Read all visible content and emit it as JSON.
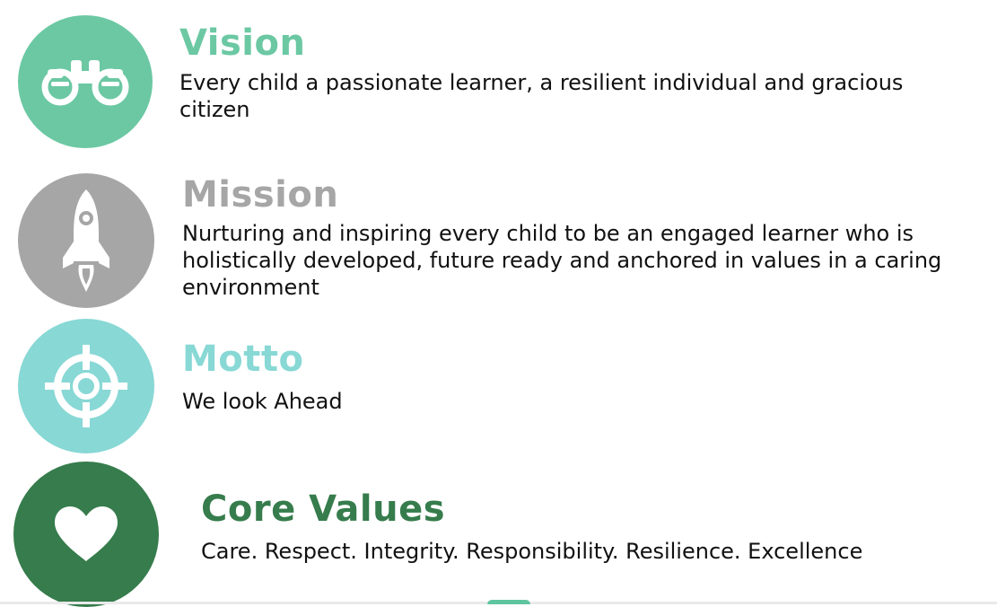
{
  "colors": {
    "vision": "#6bc8a3",
    "mission": "#a6a6a6",
    "motto": "#88d8d5",
    "core_values": "#367c4c"
  },
  "sections": {
    "vision": {
      "icon": "binoculars-icon",
      "title": "Vision",
      "text": "Every child a passionate learner, a resilient individual and gracious citizen"
    },
    "mission": {
      "icon": "rocket-icon",
      "title": "Mission",
      "text": "Nurturing and inspiring every child to be an engaged learner who is holistically developed, future ready and anchored in values in a caring environment"
    },
    "motto": {
      "icon": "target-icon",
      "title": "Motto",
      "text": "We look Ahead"
    },
    "core_values": {
      "icon": "heart-icon",
      "title": "Core Values",
      "text": "Care. Respect. Integrity. Responsibility. Resilience. Excellence"
    }
  }
}
